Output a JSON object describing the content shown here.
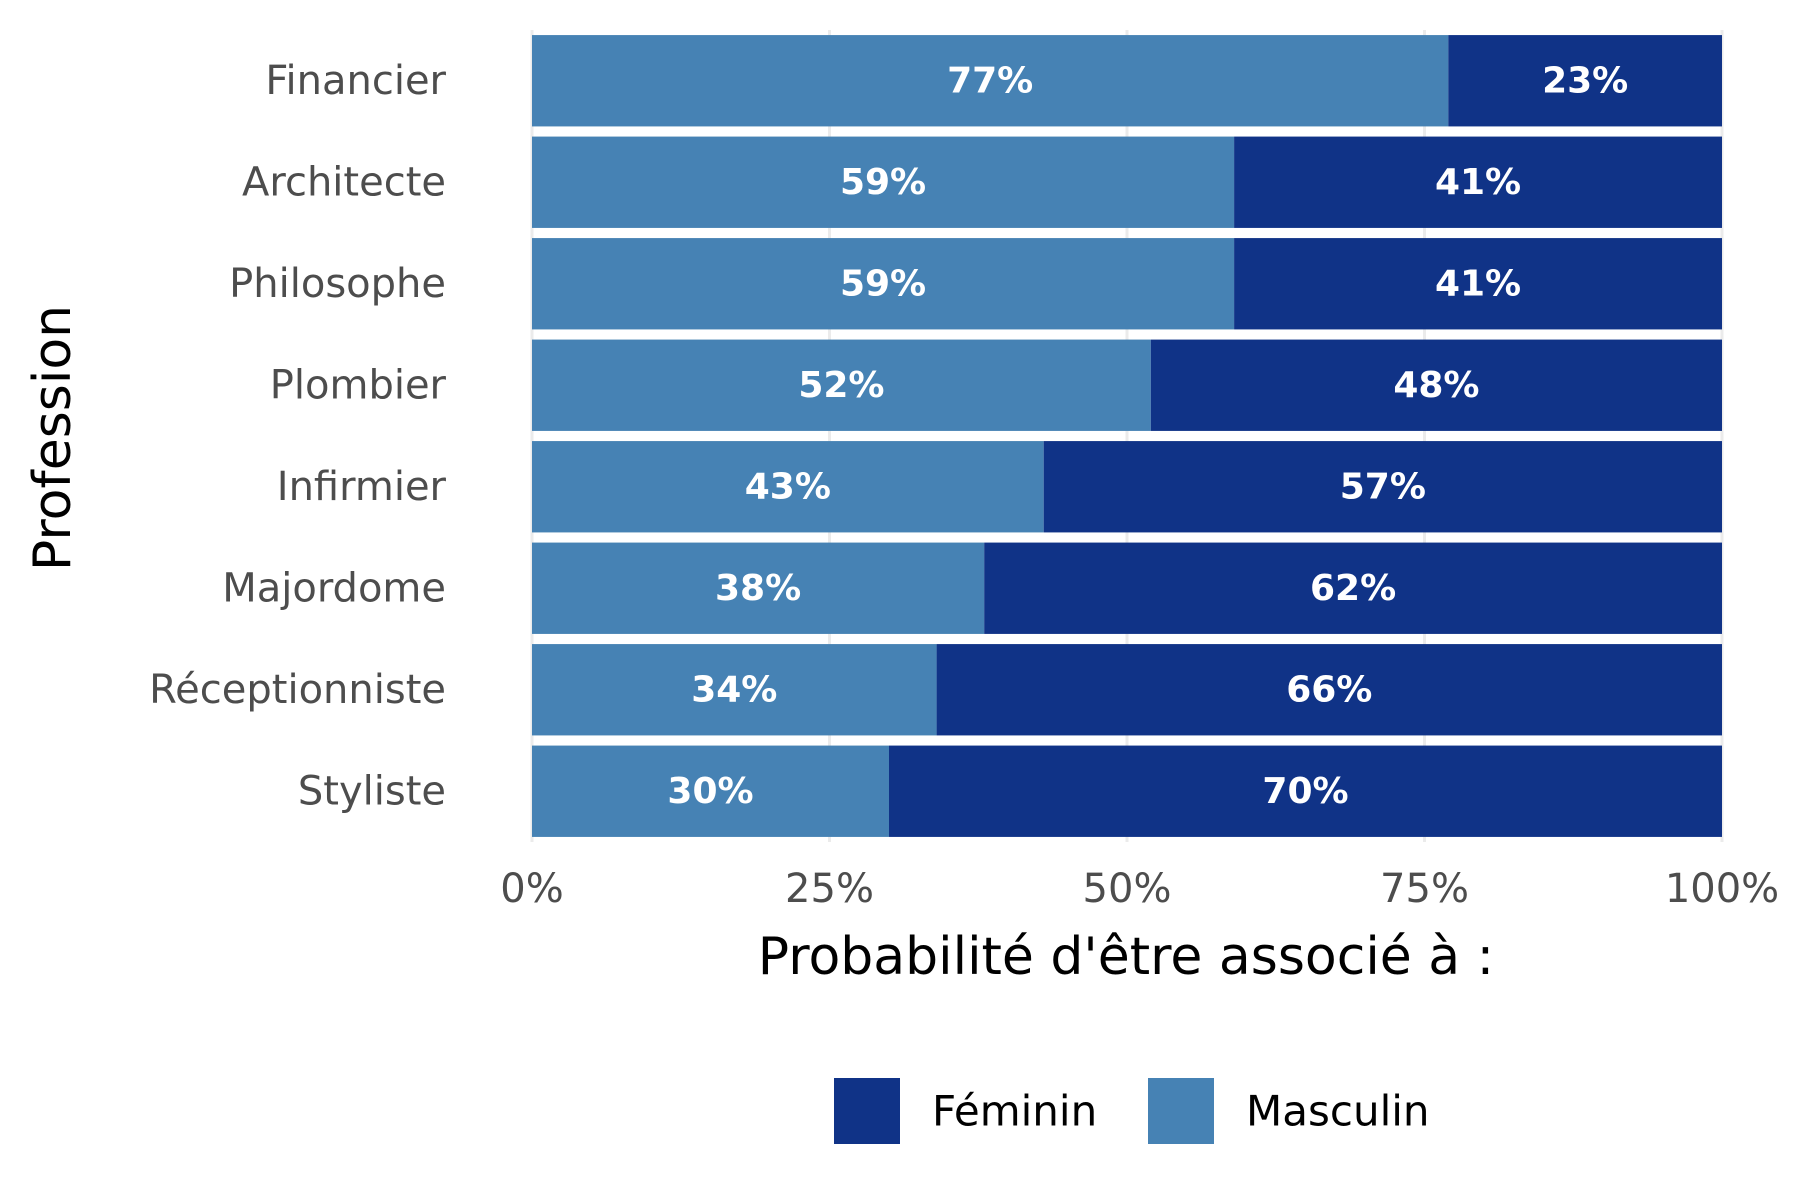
{
  "chart_data": {
    "type": "bar",
    "orientation": "horizontal",
    "stacked": true,
    "categories": [
      "Financier",
      "Architecte",
      "Philosophe",
      "Plombier",
      "Infirmier",
      "Majordome",
      "Réceptionniste",
      "Styliste"
    ],
    "series": [
      {
        "name": "Masculin",
        "color": "#4682b4",
        "values": [
          77,
          59,
          59,
          52,
          43,
          38,
          34,
          30
        ],
        "labels": [
          "77%",
          "59%",
          "59%",
          "52%",
          "43%",
          "38%",
          "34%",
          "30%"
        ]
      },
      {
        "name": "Féminin",
        "color": "#103387",
        "values": [
          23,
          41,
          41,
          48,
          57,
          62,
          66,
          70
        ],
        "labels": [
          "23%",
          "41%",
          "41%",
          "48%",
          "57%",
          "62%",
          "66%",
          "70%"
        ]
      }
    ],
    "xlabel": "Probabilité d'être associé à :",
    "ylabel": "Profession",
    "xlim": [
      0,
      100
    ],
    "xticks": [
      0,
      25,
      50,
      75,
      100
    ],
    "xtick_labels": [
      "0%",
      "25%",
      "50%",
      "75%",
      "100%"
    ],
    "grid": true,
    "legend": {
      "position": "bottom",
      "entries": [
        {
          "name": "Féminin",
          "color": "#103387"
        },
        {
          "name": "Masculin",
          "color": "#4682b4"
        }
      ]
    }
  }
}
